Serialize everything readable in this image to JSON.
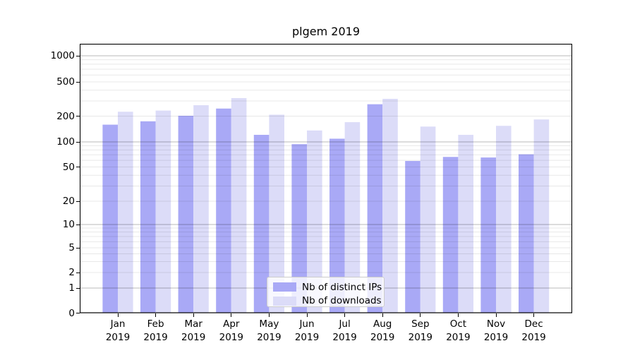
{
  "chart_data": {
    "type": "bar",
    "title": "plgem 2019",
    "categories": [
      {
        "month": "Jan",
        "year": "2019"
      },
      {
        "month": "Feb",
        "year": "2019"
      },
      {
        "month": "Mar",
        "year": "2019"
      },
      {
        "month": "Apr",
        "year": "2019"
      },
      {
        "month": "May",
        "year": "2019"
      },
      {
        "month": "Jun",
        "year": "2019"
      },
      {
        "month": "Jul",
        "year": "2019"
      },
      {
        "month": "Aug",
        "year": "2019"
      },
      {
        "month": "Sep",
        "year": "2019"
      },
      {
        "month": "Oct",
        "year": "2019"
      },
      {
        "month": "Nov",
        "year": "2019"
      },
      {
        "month": "Dec",
        "year": "2019"
      }
    ],
    "series": [
      {
        "name": "Nb of distinct IPs",
        "color": "#a9a9f6",
        "values": [
          159,
          174,
          202,
          245,
          121,
          94,
          109,
          275,
          59,
          66,
          65,
          71
        ]
      },
      {
        "name": "Nb of downloads",
        "color": "#dcdcf8",
        "values": [
          225,
          232,
          268,
          324,
          208,
          136,
          170,
          318,
          151,
          121,
          154,
          183
        ]
      }
    ],
    "xlabel": "",
    "ylabel": "",
    "yscale": "symlog",
    "yticks": [
      0,
      1,
      2,
      5,
      10,
      20,
      50,
      100,
      200,
      500,
      1000
    ],
    "ylim": [
      0,
      1400
    ],
    "grid": true,
    "legend_position": "lower center"
  }
}
